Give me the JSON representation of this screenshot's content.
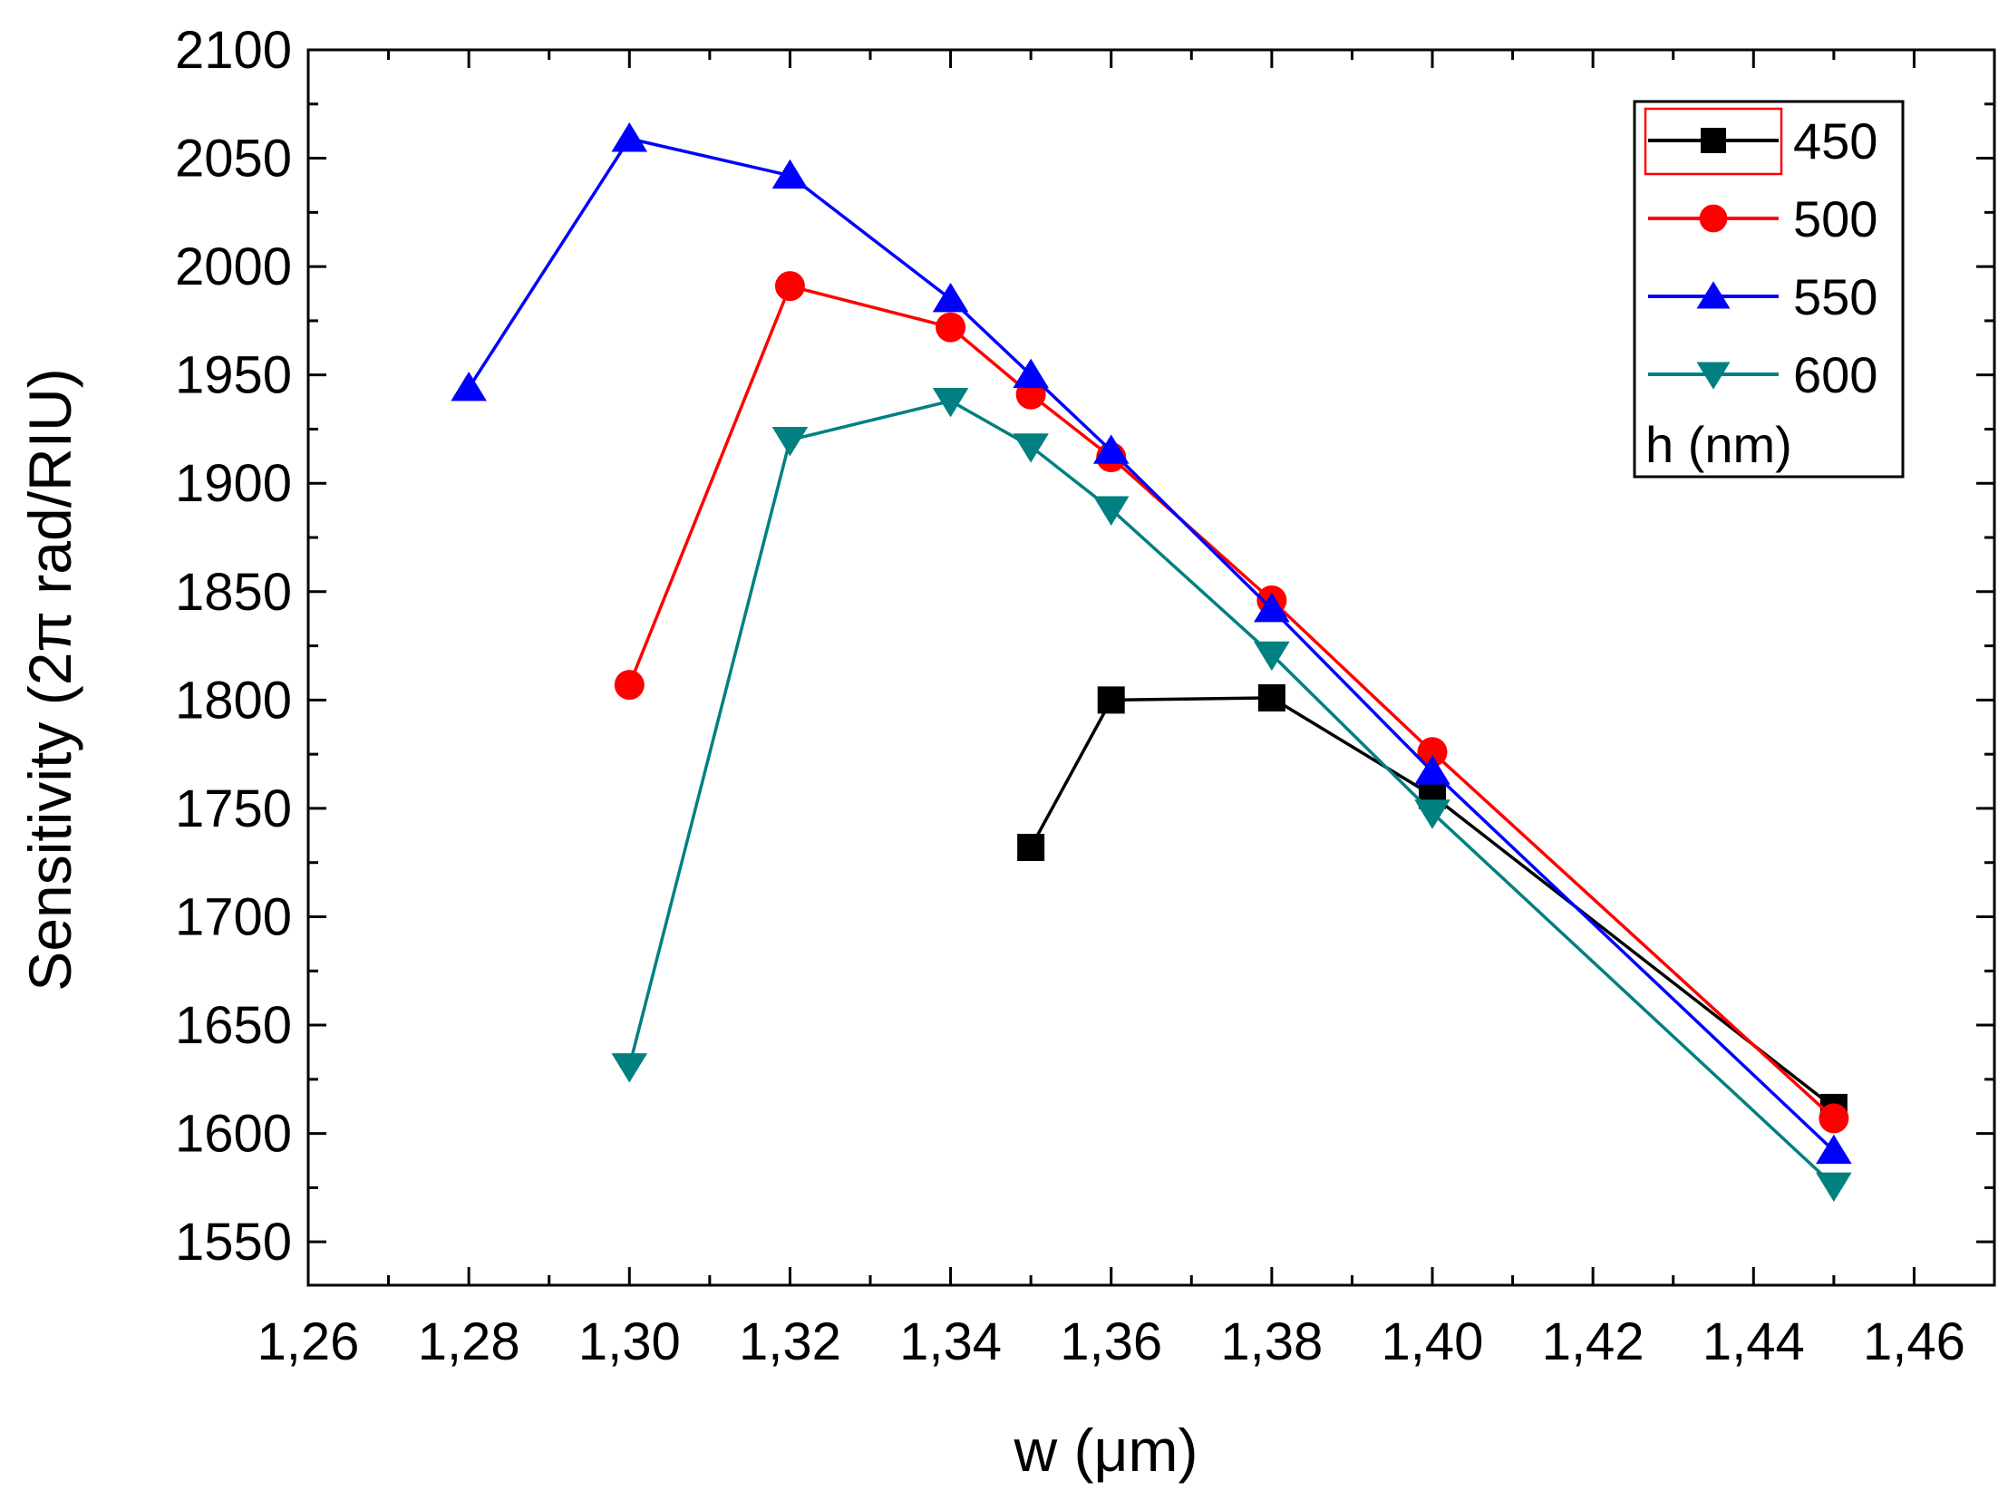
{
  "chart_data": {
    "type": "line",
    "xlabel": "w (μm)",
    "ylabel": "Sensitivity (2π rad/RIU)",
    "xlim": [
      1.26,
      1.47
    ],
    "ylim": [
      1530,
      2100
    ],
    "xticks": [
      "1,26",
      "1,28",
      "1,30",
      "1,32",
      "1,34",
      "1,36",
      "1,38",
      "1,40",
      "1,42",
      "1,44",
      "1,46"
    ],
    "yticks": [
      "1550",
      "1600",
      "1650",
      "1700",
      "1750",
      "1800",
      "1850",
      "1900",
      "1950",
      "2000",
      "2050",
      "2100"
    ],
    "legend_title": "h (nm)",
    "legend_position": "top-right",
    "series": [
      {
        "name": "450",
        "color": "#000000",
        "marker": "square",
        "x": [
          1.35,
          1.36,
          1.38,
          1.4,
          1.45
        ],
        "y": [
          1732,
          1800,
          1801,
          1756,
          1612
        ]
      },
      {
        "name": "500",
        "color": "#ff0000",
        "marker": "circle",
        "x": [
          1.3,
          1.32,
          1.34,
          1.35,
          1.36,
          1.38,
          1.4,
          1.45
        ],
        "y": [
          1807,
          1991,
          1972,
          1941,
          1912,
          1846,
          1776,
          1607
        ]
      },
      {
        "name": "550",
        "color": "#0000ff",
        "marker": "triangle-up",
        "x": [
          1.28,
          1.3,
          1.32,
          1.34,
          1.35,
          1.36,
          1.38,
          1.4,
          1.45
        ],
        "y": [
          1944,
          2059,
          2042,
          1985,
          1950,
          1915,
          1842,
          1767,
          1592
        ]
      },
      {
        "name": "600",
        "color": "#008080",
        "marker": "triangle-down",
        "x": [
          1.3,
          1.32,
          1.34,
          1.35,
          1.36,
          1.38,
          1.4,
          1.45
        ],
        "y": [
          1631,
          1920,
          1938,
          1917,
          1888,
          1821,
          1748,
          1576
        ]
      }
    ]
  }
}
